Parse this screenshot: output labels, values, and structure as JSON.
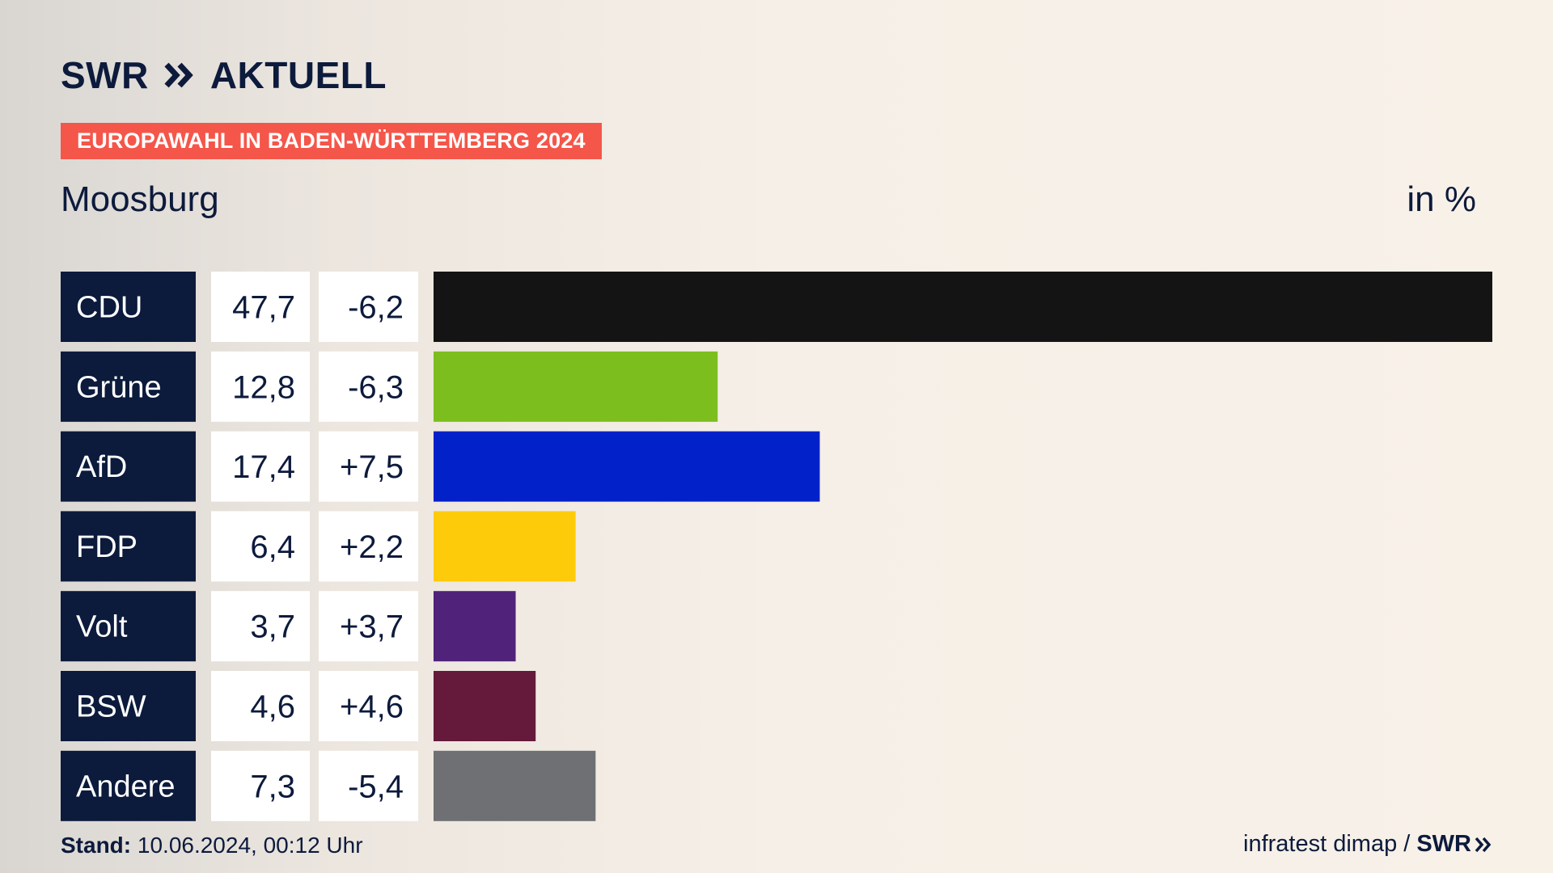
{
  "header": {
    "logo_text": "SWR",
    "logo_sub": "AKTUELL",
    "banner": "EUROPAWAHL IN BADEN-WÜRTTEMBERG 2024",
    "place": "Moosburg",
    "unit": "in %"
  },
  "footer": {
    "stand_label": "Stand:",
    "stand_value": "10.06.2024, 00:12 Uhr",
    "source": "infratest dimap /",
    "source_brand": "SWR"
  },
  "chart_data": {
    "type": "bar",
    "orientation": "horizontal",
    "categories": [
      "CDU",
      "Grüne",
      "AfD",
      "FDP",
      "Volt",
      "BSW",
      "Andere"
    ],
    "values": [
      47.7,
      12.8,
      17.4,
      6.4,
      3.7,
      4.6,
      7.3
    ],
    "value_labels": [
      "47,7",
      "12,8",
      "17,4",
      "6,4",
      "3,7",
      "4,6",
      "7,3"
    ],
    "change_labels": [
      "-6,2",
      "-6,3",
      "+7,5",
      "+2,2",
      "+3,7",
      "+4,6",
      "-5,4"
    ],
    "changes": [
      -6.2,
      -6.3,
      7.5,
      2.2,
      3.7,
      4.6,
      -5.4
    ],
    "colors": [
      "#141414",
      "#7bbe1e",
      "#0221c8",
      "#fecb0a",
      "#50227a",
      "#651a3c",
      "#6e7073"
    ],
    "xlim": [
      0,
      47.7
    ]
  }
}
